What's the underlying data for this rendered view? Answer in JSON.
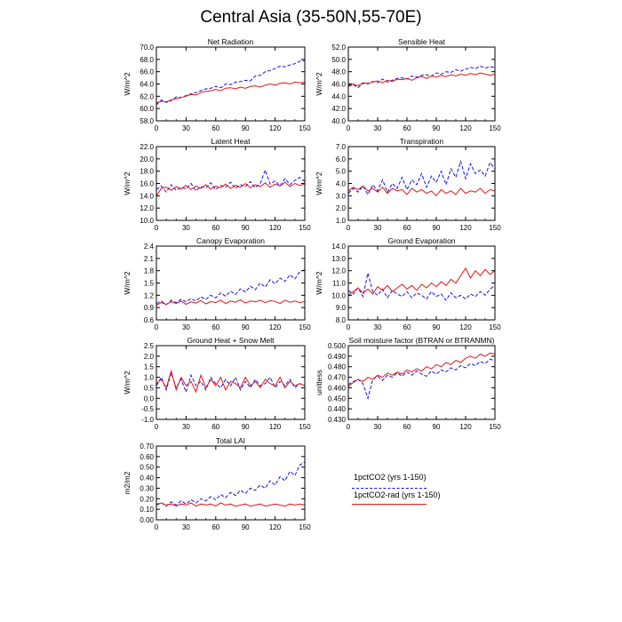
{
  "title": "Central Asia (35-50N,55-70E)",
  "legend": {
    "entries": [
      {
        "label": "1pctCO2 (yrs 1-150)",
        "color": "#1414e6",
        "style": "dashed"
      },
      {
        "label": "1pctCO2-rad (yrs 1-150)",
        "color": "#e61414",
        "style": "solid"
      }
    ]
  },
  "chart_data": [
    {
      "type": "line",
      "title": "Net Radiation",
      "ylabel": "W/m^2",
      "xlim": [
        0,
        150
      ],
      "ylim": [
        58,
        70
      ],
      "xticks": [
        0,
        30,
        60,
        90,
        120,
        150
      ],
      "yticks": [
        58,
        60,
        62,
        64,
        66,
        68,
        70
      ],
      "ytick_labels": [
        "58.0",
        "60.0",
        "62.0",
        "64.0",
        "66.0",
        "68.0",
        "70.0"
      ],
      "x_step": 5,
      "series": [
        {
          "name": "1pctCO2 (yrs 1-150)",
          "color": "#1414e6",
          "dashed": true,
          "values": [
            60.6,
            61.4,
            61.0,
            61.3,
            61.9,
            61.8,
            62.1,
            62.4,
            62.6,
            62.9,
            63.2,
            63.3,
            63.6,
            63.4,
            64.0,
            63.9,
            64.3,
            64.4,
            64.6,
            64.5,
            65.3,
            65.4,
            66.0,
            66.2,
            66.5,
            66.9,
            66.8,
            67.1,
            67.3,
            67.7,
            67.8
          ]
        },
        {
          "name": "1pctCO2-rad (yrs 1-150)",
          "color": "#e61414",
          "dashed": false,
          "values": [
            60.9,
            61.2,
            61.1,
            61.4,
            61.6,
            61.8,
            62.0,
            62.3,
            62.2,
            62.6,
            62.8,
            62.9,
            63.1,
            62.9,
            63.3,
            63.4,
            63.2,
            63.5,
            63.3,
            63.6,
            63.7,
            63.5,
            63.8,
            64.0,
            63.8,
            64.1,
            64.2,
            64.0,
            64.3,
            64.2,
            64.3
          ]
        }
      ]
    },
    {
      "type": "line",
      "title": "Sensible Heat",
      "ylabel": "W/m^2",
      "xlim": [
        0,
        150
      ],
      "ylim": [
        40,
        52
      ],
      "xticks": [
        0,
        30,
        60,
        90,
        120,
        150
      ],
      "yticks": [
        40,
        42,
        44,
        46,
        48,
        50,
        52
      ],
      "ytick_labels": [
        "40.0",
        "42.0",
        "44.0",
        "46.0",
        "48.0",
        "50.0",
        "52.0"
      ],
      "x_step": 5,
      "series": [
        {
          "name": "1pctCO2 (yrs 1-150)",
          "color": "#1414e6",
          "dashed": true,
          "values": [
            45.6,
            45.9,
            45.4,
            46.1,
            46.0,
            46.4,
            46.2,
            46.8,
            46.3,
            46.6,
            46.9,
            47.0,
            46.8,
            47.3,
            47.1,
            47.4,
            47.5,
            47.3,
            47.8,
            47.6,
            48.0,
            47.9,
            48.3,
            48.1,
            48.4,
            48.7,
            48.5,
            48.9,
            48.6,
            48.8,
            48.7
          ]
        },
        {
          "name": "1pctCO2-rad (yrs 1-150)",
          "color": "#e61414",
          "dashed": false,
          "values": [
            45.8,
            46.0,
            45.7,
            46.2,
            46.1,
            46.3,
            46.5,
            46.2,
            46.6,
            46.4,
            46.8,
            46.7,
            46.9,
            46.6,
            47.0,
            47.2,
            46.9,
            47.3,
            47.1,
            47.4,
            47.2,
            47.5,
            47.3,
            47.6,
            47.4,
            47.7,
            47.5,
            47.8,
            47.6,
            47.4,
            47.6
          ]
        }
      ]
    },
    {
      "type": "line",
      "title": "Latent Heat",
      "ylabel": "W/m^2",
      "xlim": [
        0,
        150
      ],
      "ylim": [
        10,
        22
      ],
      "xticks": [
        0,
        30,
        60,
        90,
        120,
        150
      ],
      "yticks": [
        10,
        12,
        14,
        16,
        18,
        20,
        22
      ],
      "ytick_labels": [
        "10.0",
        "12.0",
        "14.0",
        "16.0",
        "18.0",
        "20.0",
        "22.0"
      ],
      "x_step": 5,
      "series": [
        {
          "name": "1pctCO2 (yrs 1-150)",
          "color": "#1414e6",
          "dashed": true,
          "values": [
            15.0,
            15.6,
            14.6,
            15.8,
            14.9,
            15.4,
            15.1,
            16.0,
            14.8,
            15.5,
            15.3,
            16.1,
            15.0,
            15.7,
            15.4,
            16.2,
            15.2,
            15.8,
            15.5,
            16.3,
            15.3,
            16.0,
            18.2,
            15.9,
            16.4,
            15.6,
            16.8,
            15.8,
            16.5,
            17.0,
            16.3
          ]
        },
        {
          "name": "1pctCO2-rad (yrs 1-150)",
          "color": "#e61414",
          "dashed": false,
          "values": [
            14.0,
            15.2,
            15.4,
            14.9,
            15.5,
            15.1,
            15.7,
            15.0,
            15.6,
            15.2,
            15.8,
            15.1,
            15.6,
            15.3,
            15.9,
            15.2,
            15.7,
            15.4,
            16.0,
            15.3,
            15.8,
            15.5,
            16.1,
            15.4,
            15.9,
            15.6,
            16.2,
            15.5,
            16.0,
            15.7,
            15.9
          ]
        }
      ]
    },
    {
      "type": "line",
      "title": "Transpiration",
      "ylabel": "W/m^2",
      "xlim": [
        0,
        150
      ],
      "ylim": [
        1,
        7
      ],
      "xticks": [
        0,
        30,
        60,
        90,
        120,
        150
      ],
      "yticks": [
        1,
        2,
        3,
        4,
        5,
        6,
        7
      ],
      "ytick_labels": [
        "1.0",
        "2.0",
        "3.0",
        "4.0",
        "5.0",
        "6.0",
        "7.0"
      ],
      "x_step": 5,
      "series": [
        {
          "name": "1pctCO2 (yrs 1-150)",
          "color": "#1414e6",
          "dashed": true,
          "values": [
            3.2,
            3.6,
            3.3,
            3.8,
            3.1,
            3.9,
            3.4,
            4.3,
            3.3,
            4.0,
            3.6,
            4.5,
            3.5,
            4.3,
            3.9,
            4.8,
            3.7,
            4.6,
            4.1,
            5.0,
            3.9,
            5.2,
            4.5,
            5.8,
            4.4,
            5.6,
            4.8,
            5.1,
            4.6,
            5.7,
            5.2
          ]
        },
        {
          "name": "1pctCO2-rad (yrs 1-150)",
          "color": "#e61414",
          "dashed": false,
          "values": [
            3.4,
            3.7,
            3.5,
            3.8,
            3.4,
            3.6,
            3.3,
            3.7,
            3.2,
            3.6,
            3.4,
            3.5,
            3.1,
            3.6,
            3.3,
            3.5,
            3.2,
            3.4,
            3.0,
            3.5,
            3.2,
            3.4,
            3.1,
            3.6,
            3.2,
            3.4,
            3.3,
            3.6,
            3.2,
            3.5,
            3.4
          ]
        }
      ]
    },
    {
      "type": "line",
      "title": "Canopy Evaporation",
      "ylabel": "W/m^2",
      "xlim": [
        0,
        150
      ],
      "ylim": [
        0.6,
        2.4
      ],
      "xticks": [
        0,
        30,
        60,
        90,
        120,
        150
      ],
      "yticks": [
        0.6,
        0.9,
        1.2,
        1.5,
        1.8,
        2.1,
        2.4
      ],
      "ytick_labels": [
        "0.6",
        "0.9",
        "1.2",
        "1.5",
        "1.8",
        "2.1",
        "2.4"
      ],
      "x_step": 5,
      "series": [
        {
          "name": "1pctCO2 (yrs 1-150)",
          "color": "#1414e6",
          "dashed": true,
          "values": [
            1.0,
            1.06,
            0.97,
            1.08,
            1.02,
            1.1,
            1.04,
            1.12,
            1.06,
            1.16,
            1.1,
            1.2,
            1.14,
            1.26,
            1.18,
            1.3,
            1.22,
            1.36,
            1.28,
            1.42,
            1.34,
            1.5,
            1.4,
            1.58,
            1.48,
            1.62,
            1.54,
            1.7,
            1.6,
            1.78,
            1.82
          ]
        },
        {
          "name": "1pctCO2-rad (yrs 1-150)",
          "color": "#e61414",
          "dashed": false,
          "values": [
            0.96,
            1.02,
            0.98,
            1.04,
            1.0,
            1.06,
            0.98,
            1.04,
            1.01,
            1.07,
            0.99,
            1.05,
            1.02,
            1.08,
            1.0,
            1.06,
            1.03,
            1.09,
            1.01,
            1.06,
            1.04,
            1.08,
            1.02,
            1.07,
            1.05,
            1.0,
            1.08,
            1.03,
            1.06,
            1.02,
            1.05
          ]
        }
      ]
    },
    {
      "type": "line",
      "title": "Ground Evaporation",
      "ylabel": "W/m^2",
      "xlim": [
        0,
        150
      ],
      "ylim": [
        8,
        14
      ],
      "xticks": [
        0,
        30,
        60,
        90,
        120,
        150
      ],
      "yticks": [
        8,
        9,
        10,
        11,
        12,
        13,
        14
      ],
      "ytick_labels": [
        "8.0",
        "9.0",
        "10.0",
        "11.0",
        "12.0",
        "13.0",
        "14.0"
      ],
      "x_step": 5,
      "series": [
        {
          "name": "1pctCO2 (yrs 1-150)",
          "color": "#1414e6",
          "dashed": true,
          "values": [
            10.4,
            10.1,
            10.6,
            9.9,
            11.8,
            10.3,
            10.0,
            10.5,
            9.8,
            10.4,
            10.1,
            9.9,
            10.3,
            9.8,
            10.2,
            10.0,
            9.7,
            10.3,
            9.9,
            10.1,
            9.6,
            10.2,
            9.8,
            10.0,
            9.7,
            10.1,
            9.9,
            10.3,
            10.0,
            10.5,
            10.8
          ]
        },
        {
          "name": "1pctCO2-rad (yrs 1-150)",
          "color": "#e61414",
          "dashed": false,
          "values": [
            10.0,
            10.3,
            10.6,
            10.2,
            10.5,
            10.1,
            10.7,
            10.4,
            10.8,
            10.3,
            10.6,
            10.9,
            10.5,
            10.8,
            10.4,
            10.9,
            10.6,
            11.0,
            10.7,
            11.1,
            10.8,
            11.3,
            11.0,
            11.6,
            12.2,
            11.4,
            12.0,
            11.6,
            12.1,
            11.7,
            12.0
          ]
        }
      ]
    },
    {
      "type": "line",
      "title": "Ground Heat + Snow Melt",
      "ylabel": "W/m^2",
      "xlim": [
        0,
        150
      ],
      "ylim": [
        -1,
        2.5
      ],
      "xticks": [
        0,
        30,
        60,
        90,
        120,
        150
      ],
      "yticks": [
        -1,
        -0.5,
        0,
        0.5,
        1,
        1.5,
        2,
        2.5
      ],
      "ytick_labels": [
        "-1.0",
        "-0.5",
        "0.0",
        "0.5",
        "1.0",
        "1.5",
        "2.0",
        "2.5"
      ],
      "x_step": 5,
      "series": [
        {
          "name": "1pctCO2 (yrs 1-150)",
          "color": "#1414e6",
          "dashed": true,
          "values": [
            0.6,
            1.0,
            0.4,
            1.2,
            0.5,
            0.9,
            0.3,
            1.1,
            0.6,
            0.8,
            0.4,
            1.0,
            0.7,
            0.5,
            0.9,
            0.6,
            1.0,
            0.4,
            0.8,
            0.5,
            0.9,
            0.6,
            0.7,
            1.0,
            0.5,
            0.8,
            0.6,
            0.9,
            0.5,
            0.7,
            0.6
          ]
        },
        {
          "name": "1pctCO2-rad (yrs 1-150)",
          "color": "#e61414",
          "dashed": false,
          "values": [
            0.7,
            0.9,
            0.5,
            1.3,
            0.4,
            1.0,
            0.6,
            0.8,
            0.3,
            1.1,
            0.5,
            0.9,
            0.6,
            1.0,
            0.4,
            0.8,
            0.7,
            0.5,
            1.0,
            0.6,
            0.8,
            0.5,
            0.9,
            0.7,
            0.6,
            1.0,
            0.5,
            0.8,
            0.6,
            0.7,
            0.6
          ]
        }
      ]
    },
    {
      "type": "line",
      "title": "Soil moisture factor (BTRAN or BTRANMN)",
      "ylabel": "unitless",
      "xlim": [
        0,
        150
      ],
      "ylim": [
        0.43,
        0.5
      ],
      "xticks": [
        0,
        30,
        60,
        90,
        120,
        150
      ],
      "yticks": [
        0.43,
        0.44,
        0.45,
        0.46,
        0.47,
        0.48,
        0.49,
        0.5
      ],
      "ytick_labels": [
        "0.430",
        "0.440",
        "0.450",
        "0.460",
        "0.470",
        "0.480",
        "0.490",
        "0.500"
      ],
      "x_step": 5,
      "series": [
        {
          "name": "1pctCO2 (yrs 1-150)",
          "color": "#1414e6",
          "dashed": true,
          "values": [
            0.463,
            0.466,
            0.468,
            0.464,
            0.45,
            0.468,
            0.471,
            0.467,
            0.472,
            0.47,
            0.474,
            0.471,
            0.475,
            0.472,
            0.476,
            0.473,
            0.471,
            0.476,
            0.473,
            0.477,
            0.475,
            0.479,
            0.477,
            0.481,
            0.479,
            0.483,
            0.481,
            0.485,
            0.483,
            0.487,
            0.486
          ]
        },
        {
          "name": "1pctCO2-rad (yrs 1-150)",
          "color": "#e61414",
          "dashed": false,
          "values": [
            0.461,
            0.465,
            0.468,
            0.466,
            0.47,
            0.468,
            0.472,
            0.47,
            0.474,
            0.472,
            0.475,
            0.473,
            0.477,
            0.475,
            0.478,
            0.476,
            0.48,
            0.478,
            0.482,
            0.48,
            0.484,
            0.482,
            0.486,
            0.484,
            0.488,
            0.49,
            0.488,
            0.492,
            0.49,
            0.493,
            0.492
          ]
        }
      ]
    },
    {
      "type": "line",
      "title": "Total LAI",
      "ylabel": "m2/m2",
      "xlim": [
        0,
        150
      ],
      "ylim": [
        0,
        0.7
      ],
      "xticks": [
        0,
        30,
        60,
        90,
        120,
        150
      ],
      "yticks": [
        0,
        0.1,
        0.2,
        0.3,
        0.4,
        0.5,
        0.6,
        0.7
      ],
      "ytick_labels": [
        "0.00",
        "0.10",
        "0.20",
        "0.30",
        "0.40",
        "0.50",
        "0.60",
        "0.70"
      ],
      "x_step": 5,
      "series": [
        {
          "name": "1pctCO2 (yrs 1-150)",
          "color": "#1414e6",
          "dashed": true,
          "values": [
            0.14,
            0.16,
            0.13,
            0.17,
            0.14,
            0.18,
            0.15,
            0.19,
            0.16,
            0.2,
            0.18,
            0.22,
            0.19,
            0.24,
            0.21,
            0.26,
            0.23,
            0.28,
            0.25,
            0.3,
            0.28,
            0.33,
            0.3,
            0.37,
            0.33,
            0.41,
            0.37,
            0.46,
            0.42,
            0.52,
            0.55
          ]
        },
        {
          "name": "1pctCO2-rad (yrs 1-150)",
          "color": "#e61414",
          "dashed": false,
          "values": [
            0.15,
            0.16,
            0.14,
            0.15,
            0.13,
            0.15,
            0.14,
            0.16,
            0.13,
            0.15,
            0.14,
            0.15,
            0.13,
            0.16,
            0.14,
            0.15,
            0.13,
            0.14,
            0.15,
            0.13,
            0.14,
            0.15,
            0.13,
            0.14,
            0.15,
            0.14,
            0.13,
            0.15,
            0.14,
            0.15,
            0.14
          ]
        }
      ]
    }
  ]
}
